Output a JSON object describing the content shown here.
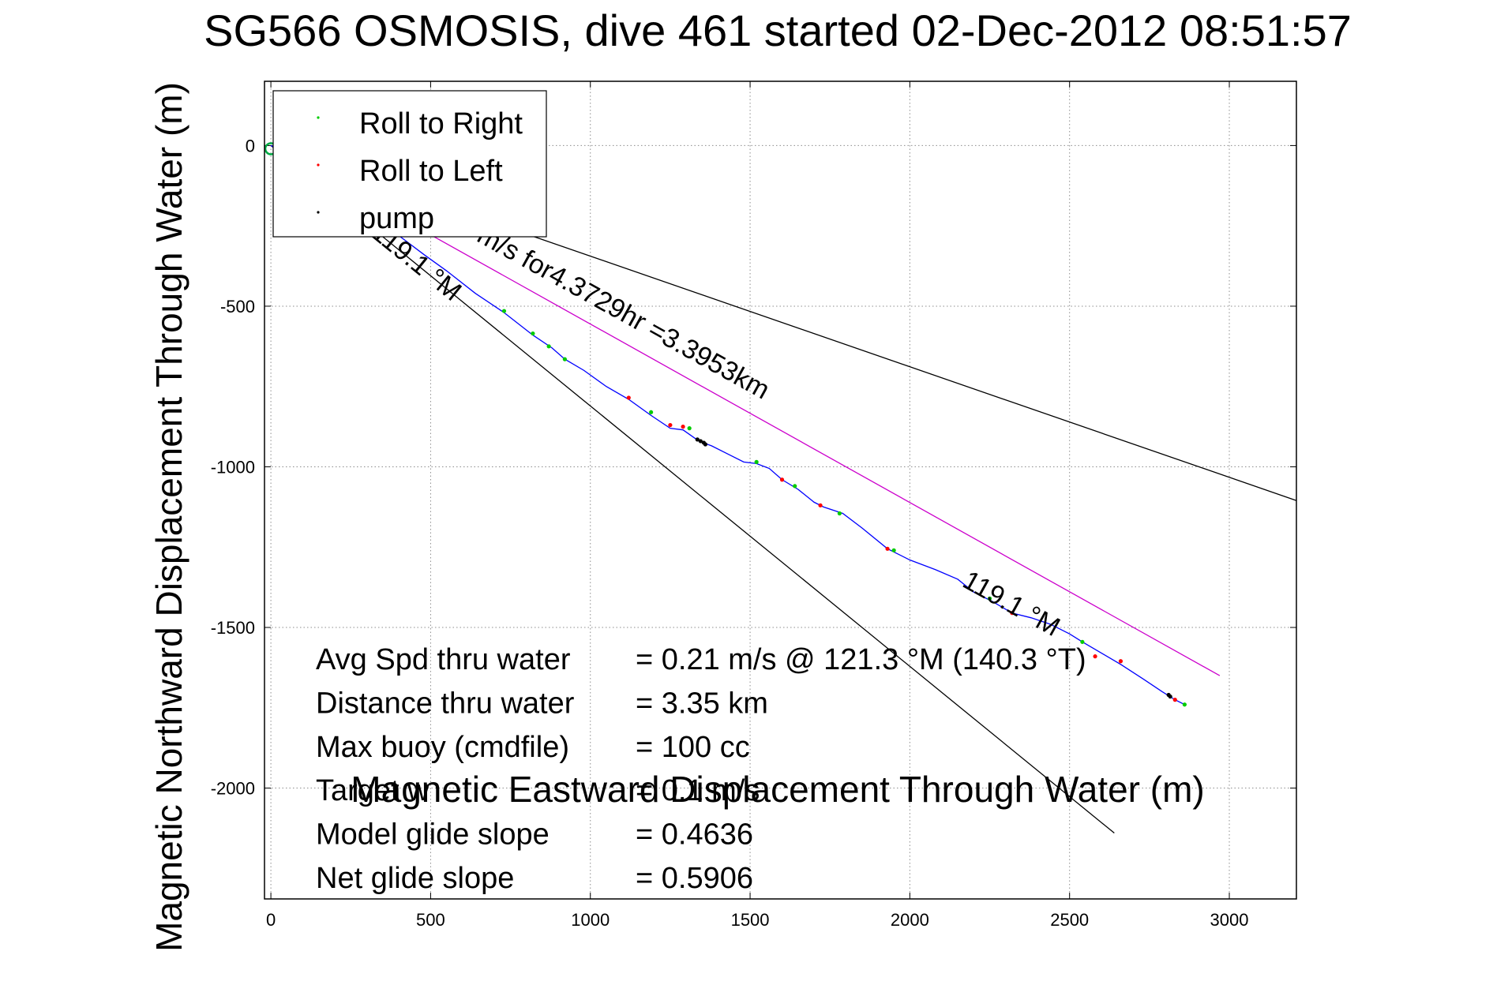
{
  "chart_data": {
    "type": "line",
    "title": "SG566 OSMOSIS, dive 461 started 02-Dec-2012 08:51:57",
    "xlabel": "Magnetic Eastward Displacement Through Water (m)",
    "ylabel": "Magnetic Northward Displacement Through Water (m)",
    "xlim": [
      -20,
      3210
    ],
    "ylim": [
      -2345,
      200
    ],
    "xticks": [
      0,
      500,
      1000,
      1500,
      2000,
      2500,
      3000
    ],
    "yticks": [
      0,
      -500,
      -1000,
      -1500,
      -2000
    ],
    "grid": true,
    "legend": {
      "placement": "top-left",
      "entries": [
        {
          "label": "Roll to Right",
          "color": "#00cc00"
        },
        {
          "label": "Roll to Left",
          "color": "#ff0000"
        },
        {
          "label": "pump",
          "color": "#000000"
        }
      ]
    },
    "series": [
      {
        "kind": "track",
        "color": "#0000ff",
        "x": [
          0,
          100,
          200,
          300,
          400,
          480,
          550,
          640,
          730,
          820,
          880,
          920,
          980,
          1050,
          1120,
          1190,
          1250,
          1290,
          1340,
          1380,
          1430,
          1480,
          1520,
          1560,
          1600,
          1650,
          1700,
          1730,
          1790,
          1850,
          1930,
          2000,
          2080,
          2150,
          2200,
          2260,
          2320,
          2380,
          2440,
          2500,
          2540,
          2600,
          2660,
          2730,
          2790,
          2830,
          2860
        ],
        "y": [
          0,
          -50,
          -130,
          -200,
          -280,
          -340,
          -390,
          -460,
          -520,
          -590,
          -630,
          -665,
          -700,
          -750,
          -790,
          -840,
          -880,
          -885,
          -920,
          -935,
          -960,
          -985,
          -990,
          -1005,
          -1040,
          -1070,
          -1110,
          -1125,
          -1145,
          -1190,
          -1255,
          -1290,
          -1320,
          -1350,
          -1390,
          -1420,
          -1455,
          -1470,
          -1490,
          -1520,
          -1545,
          -1580,
          -1615,
          -1660,
          -1700,
          -1725,
          -1740
        ]
      },
      {
        "kind": "roll-right",
        "color": "#00cc00",
        "x": [
          730,
          820,
          870,
          920,
          1190,
          1310,
          1520,
          1640,
          1780,
          1950,
          2250,
          2540,
          2860
        ],
        "y": [
          -515,
          -585,
          -625,
          -665,
          -830,
          -880,
          -985,
          -1060,
          -1145,
          -1260,
          -1410,
          -1545,
          -1740
        ]
      },
      {
        "kind": "roll-left",
        "color": "#ff0000",
        "x": [
          1120,
          1250,
          1290,
          1600,
          1720,
          1930,
          2320,
          2580,
          2660,
          2830
        ],
        "y": [
          -785,
          -870,
          -875,
          -1040,
          -1120,
          -1255,
          -1455,
          -1590,
          -1605,
          -1725
        ]
      },
      {
        "kind": "pump",
        "color": "#000000",
        "x": [
          1335,
          1345,
          1355,
          1360,
          2810,
          2815
        ],
        "y": [
          -915,
          -920,
          -925,
          -930,
          -1710,
          -1715
        ]
      }
    ],
    "reference_lines": [
      {
        "color": "#cc00cc",
        "x": [
          0,
          2970
        ],
        "y": [
          0,
          -1650
        ]
      },
      {
        "color": "#000000",
        "x": [
          0,
          3210
        ],
        "y": [
          0,
          -1105
        ]
      },
      {
        "color": "#000000",
        "x": [
          0,
          2640
        ],
        "y": [
          0,
          -2140
        ]
      }
    ],
    "start_marker": {
      "x": 0,
      "y": -10,
      "color": "#00aa44"
    },
    "annotations": [
      {
        "text": "m/s for4.3729hr =3.3953km",
        "x": 640,
        "y": -295,
        "rotation_deg": 29
      },
      {
        "text": "119.1 °M",
        "x": 310,
        "y": -280,
        "rotation_deg": 39
      },
      {
        "text": "119.1 °M",
        "x": 2160,
        "y": -1370,
        "rotation_deg": 29
      }
    ],
    "stats": [
      {
        "label": "Avg Spd thru water",
        "value": "=  0.21 m/s @ 121.3 °M (140.3 °T)"
      },
      {
        "label": "Distance thru water",
        "value": "=  3.35 km"
      },
      {
        "label": "Max buoy (cmdfile)",
        "value": "= 100 cc"
      },
      {
        "label": "Target w",
        "value": "= 0.1 m/s"
      },
      {
        "label": "Model glide slope",
        "value": "= 0.4636"
      },
      {
        "label": "Net glide slope",
        "value": "= 0.5906"
      }
    ]
  }
}
